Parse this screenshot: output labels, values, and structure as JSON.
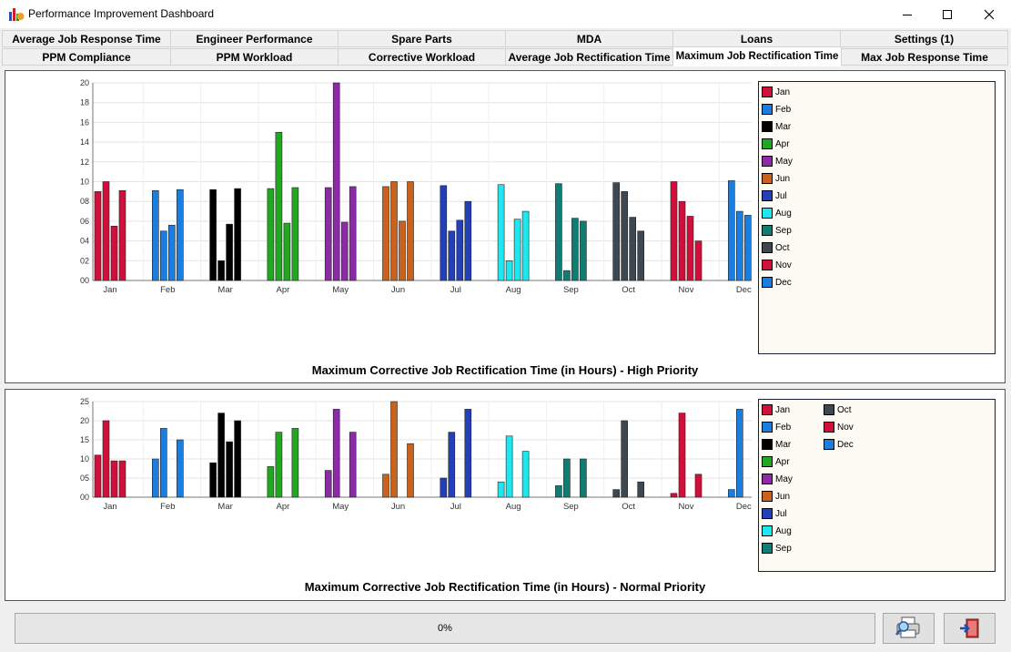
{
  "window": {
    "title": "Performance Improvement Dashboard"
  },
  "tabs": {
    "row1": [
      "Average Job Response Time",
      "Engineer Performance",
      "Spare Parts",
      "MDA",
      "Loans",
      "Settings (1)"
    ],
    "row2": [
      "PPM Compliance",
      "PPM Workload",
      "Corrective Workload",
      "Average Job Rectification Time",
      "Maximum Job Rectification Time",
      "Max Job Response Time"
    ],
    "active": "Maximum Job Rectification Time"
  },
  "colors": {
    "Jan": "#d0103a",
    "Feb": "#1a7ee0",
    "Mar": "#000000",
    "Apr": "#21a821",
    "May": "#8d2aa8",
    "Jun": "#c9621c",
    "Jul": "#2440b8",
    "Aug": "#1de8f0",
    "Sep": "#0f7d74",
    "Oct": "#3d4850",
    "Nov": "#d0103a",
    "Dec": "#1a7ee0"
  },
  "chart_data": [
    {
      "type": "bar",
      "title": "Maximum Corrective Job Rectification Time (in Hours) - High Priority",
      "categories": [
        "Jan",
        "Feb",
        "Mar",
        "Apr",
        "May",
        "Jun",
        "Jul",
        "Aug",
        "Sep",
        "Oct",
        "Nov",
        "Dec"
      ],
      "values": [
        [
          9,
          10,
          5.5,
          9.1
        ],
        [
          9.1,
          5,
          5.6,
          9.2
        ],
        [
          9.2,
          2,
          5.7,
          9.3
        ],
        [
          9.3,
          15,
          5.8,
          9.4
        ],
        [
          9.4,
          20,
          5.9,
          9.5
        ],
        [
          9.5,
          10,
          6,
          10
        ],
        [
          9.6,
          5,
          6.1,
          8
        ],
        [
          9.7,
          2,
          6.2,
          7
        ],
        [
          9.8,
          1,
          6.3,
          6
        ],
        [
          9.9,
          9,
          6.4,
          5
        ],
        [
          10,
          8,
          6.5,
          4
        ],
        [
          10.1,
          7,
          6.6,
          3
        ]
      ],
      "yticks": [
        "00",
        "02",
        "04",
        "06",
        "08",
        "10",
        "12",
        "14",
        "16",
        "18",
        "20"
      ],
      "ylim": [
        0,
        20
      ],
      "grid": true,
      "legend": [
        "Jan",
        "Feb",
        "Mar",
        "Apr",
        "May",
        "Jun",
        "Jul",
        "Aug",
        "Sep",
        "Oct",
        "Nov",
        "Dec"
      ],
      "legend_position": "right"
    },
    {
      "type": "bar",
      "title": "Maximum Corrective Job Rectification Time (in Hours) - Normal Priority",
      "categories": [
        "Jan",
        "Feb",
        "Mar",
        "Apr",
        "May",
        "Jun",
        "Jul",
        "Aug",
        "Sep",
        "Oct",
        "Nov",
        "Dec"
      ],
      "values": [
        [
          11,
          20,
          9.5,
          9.5
        ],
        [
          10,
          18,
          0,
          15
        ],
        [
          9,
          22,
          14.5,
          20
        ],
        [
          8,
          17,
          0,
          18
        ],
        [
          7,
          23,
          0,
          17
        ],
        [
          6,
          25,
          0,
          14
        ],
        [
          5,
          17,
          0,
          23
        ],
        [
          4,
          16,
          0,
          12
        ],
        [
          3,
          10,
          0,
          10
        ],
        [
          2,
          20,
          0,
          4
        ],
        [
          1,
          22,
          0,
          6
        ],
        [
          2,
          23,
          0,
          7
        ]
      ],
      "yticks": [
        "00",
        "05",
        "10",
        "15",
        "20",
        "25"
      ],
      "ylim": [
        0,
        25
      ],
      "grid": true,
      "legend": [
        "Jan",
        "Feb",
        "Mar",
        "Apr",
        "May",
        "Jun",
        "Jul",
        "Aug",
        "Sep",
        "Oct",
        "Nov",
        "Dec"
      ],
      "legend_position": "right"
    }
  ],
  "status": {
    "progress_text": "0%",
    "progress": 0
  },
  "buttons": {
    "print_icon": "printer-magnifier-icon",
    "exit_icon": "exit-door-icon"
  }
}
